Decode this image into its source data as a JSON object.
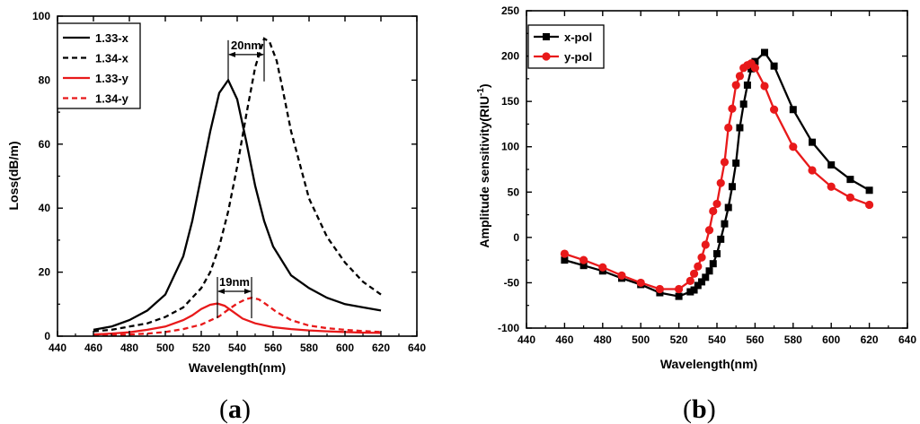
{
  "chart_data": [
    {
      "panel_label": "a",
      "type": "line",
      "xlabel": "Wavelength(nm)",
      "ylabel": "Loss(dB/m)",
      "xlim": [
        440,
        640
      ],
      "ylim": [
        0,
        100
      ],
      "xticks": [
        440,
        460,
        480,
        500,
        520,
        540,
        560,
        580,
        600,
        620,
        640
      ],
      "yticks": [
        0,
        20,
        40,
        60,
        80,
        100
      ],
      "legend_position": "top-left",
      "series": [
        {
          "name": "1.33-x",
          "color": "#000000",
          "dash": "solid",
          "x": [
            460,
            470,
            480,
            490,
            500,
            510,
            515,
            520,
            525,
            530,
            535,
            540,
            545,
            550,
            555,
            560,
            570,
            580,
            590,
            600,
            610,
            620
          ],
          "y": [
            2,
            3,
            5,
            8,
            13,
            25,
            36,
            50,
            64,
            76,
            80,
            74,
            61,
            47,
            36,
            28,
            19,
            15,
            12,
            10,
            9,
            8
          ]
        },
        {
          "name": "1.34-x",
          "color": "#000000",
          "dash": "dashed",
          "x": [
            460,
            470,
            480,
            490,
            500,
            510,
            520,
            525,
            530,
            535,
            540,
            545,
            550,
            555,
            558,
            562,
            565,
            570,
            580,
            590,
            600,
            610,
            620
          ],
          "y": [
            1.5,
            2,
            3,
            4,
            6,
            9,
            15,
            20,
            28,
            39,
            53,
            69,
            84,
            93,
            92,
            86,
            78,
            64,
            43,
            31,
            23,
            17,
            13
          ]
        },
        {
          "name": "1.33-y",
          "color": "#e8191a",
          "dash": "solid",
          "x": [
            460,
            470,
            480,
            490,
            500,
            510,
            515,
            520,
            525,
            529,
            533,
            538,
            543,
            550,
            560,
            570,
            580,
            590,
            600,
            610,
            620
          ],
          "y": [
            0.5,
            0.8,
            1.2,
            2,
            3,
            5,
            6.5,
            8.5,
            9.8,
            10.2,
            9.5,
            7.5,
            5.5,
            4,
            2.8,
            2.2,
            1.8,
            1.5,
            1.3,
            1.1,
            1
          ]
        },
        {
          "name": "1.34-y",
          "color": "#e8191a",
          "dash": "dashed",
          "x": [
            460,
            470,
            480,
            490,
            500,
            510,
            520,
            530,
            535,
            540,
            545,
            548,
            552,
            556,
            562,
            570,
            580,
            590,
            600,
            610,
            620
          ],
          "y": [
            0.2,
            0.3,
            0.5,
            0.8,
            1.3,
            2.2,
            3.6,
            6.2,
            8.3,
            10.2,
            11.6,
            12,
            11.5,
            10,
            7.5,
            5,
            3.3,
            2.5,
            2,
            1.6,
            1.3
          ]
        }
      ],
      "annotations": [
        {
          "text": "20nm",
          "x_from": 535,
          "x_to": 555,
          "y": 88
        },
        {
          "text": "19nm",
          "x_from": 529,
          "x_to": 548,
          "y": 14
        }
      ]
    },
    {
      "panel_label": "b",
      "type": "line",
      "xlabel": "Wavelength(nm)",
      "ylabel": "Amplitude sensitivity(RIU",
      "ylabel_superscript": "-1",
      "ylabel_close": ")",
      "xlim": [
        440,
        640
      ],
      "ylim": [
        -100,
        250
      ],
      "xticks": [
        440,
        460,
        480,
        500,
        520,
        540,
        560,
        580,
        600,
        620,
        640
      ],
      "yticks": [
        -100,
        -50,
        0,
        50,
        100,
        150,
        200,
        250
      ],
      "legend_position": "top-left",
      "series": [
        {
          "name": "x-pol",
          "color": "#000000",
          "marker": "square",
          "x": [
            460,
            470,
            480,
            490,
            500,
            510,
            520,
            526,
            528,
            530,
            532,
            534,
            536,
            538,
            540,
            542,
            544,
            546,
            548,
            550,
            552,
            554,
            556,
            558,
            560,
            565,
            570,
            580,
            590,
            600,
            610,
            620
          ],
          "y": [
            -25,
            -31,
            -37,
            -45,
            -52,
            -61,
            -65,
            -60,
            -58,
            -53,
            -49,
            -44,
            -37,
            -29,
            -18,
            -2,
            15,
            33,
            56,
            82,
            121,
            147,
            168,
            186,
            194,
            204,
            189,
            141,
            105,
            80,
            64,
            52
          ]
        },
        {
          "name": "y-pol",
          "color": "#e8191a",
          "marker": "circle",
          "x": [
            460,
            470,
            480,
            490,
            500,
            510,
            520,
            526,
            528,
            530,
            532,
            534,
            536,
            538,
            540,
            542,
            544,
            546,
            548,
            550,
            552,
            554,
            556,
            558,
            560,
            565,
            570,
            580,
            590,
            600,
            610,
            620
          ],
          "y": [
            -18,
            -25,
            -33,
            -42,
            -50,
            -57,
            -57,
            -48,
            -40,
            -32,
            -22,
            -8,
            8,
            29,
            37,
            60,
            83,
            121,
            142,
            168,
            178,
            187,
            190,
            192,
            187,
            167,
            141,
            100,
            74,
            56,
            44,
            36
          ]
        }
      ]
    }
  ]
}
